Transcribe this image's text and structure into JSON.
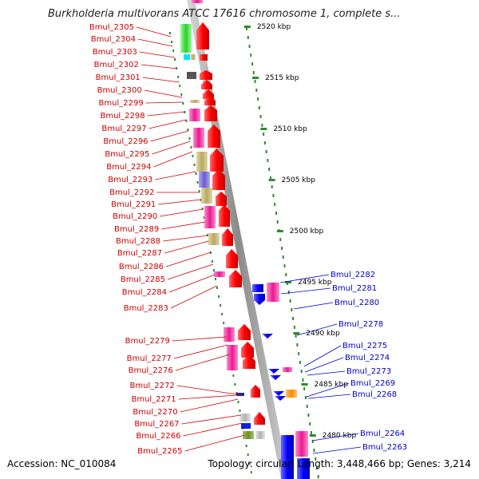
{
  "header": {
    "title": "Burkholderia multivorans ATCC 17616 chromosome 1, complete s..."
  },
  "footer": {
    "accession": "Accession: NC_010084",
    "topology": "Topology: circular; Length: 3,448,466 bp; Genes: 3,214"
  },
  "colors": {
    "backbone": "#a0a0a0",
    "tick": "#2e8b2e",
    "left_label": "#cc0000",
    "right_label": "#0000cc",
    "forward_gene": "#ff0000",
    "reverse_gene": "#0000ff"
  },
  "scale": {
    "ticks": [
      "2520 kbp",
      "2515 kbp",
      "2510 kbp",
      "2505 kbp",
      "2500 kbp",
      "2495 kbp",
      "2490 kbp",
      "2485 kbp",
      "2480 kbp"
    ]
  },
  "left_genes": [
    "Bmul_2305",
    "Bmul_2304",
    "Bmul_2303",
    "Bmul_2302",
    "Bmul_2301",
    "Bmul_2300",
    "Bmul_2299",
    "Bmul_2298",
    "Bmul_2297",
    "Bmul_2296",
    "Bmul_2295",
    "Bmul_2294",
    "Bmul_2293",
    "Bmul_2292",
    "Bmul_2291",
    "Bmul_2290",
    "Bmul_2289",
    "Bmul_2288",
    "Bmul_2287",
    "Bmul_2286",
    "Bmul_2285",
    "Bmul_2284",
    "Bmul_2283",
    "Bmul_2279",
    "Bmul_2277",
    "Bmul_2276",
    "Bmul_2272",
    "Bmul_2271",
    "Bmul_2270",
    "Bmul_2267",
    "Bmul_2266",
    "Bmul_2265"
  ],
  "right_genes": [
    "Bmul_2282",
    "Bmul_2281",
    "Bmul_2280",
    "Bmul_2278",
    "Bmul_2275",
    "Bmul_2274",
    "Bmul_2273",
    "Bmul_2269",
    "Bmul_2268",
    "Bmul_2264",
    "Bmul_2263"
  ]
}
